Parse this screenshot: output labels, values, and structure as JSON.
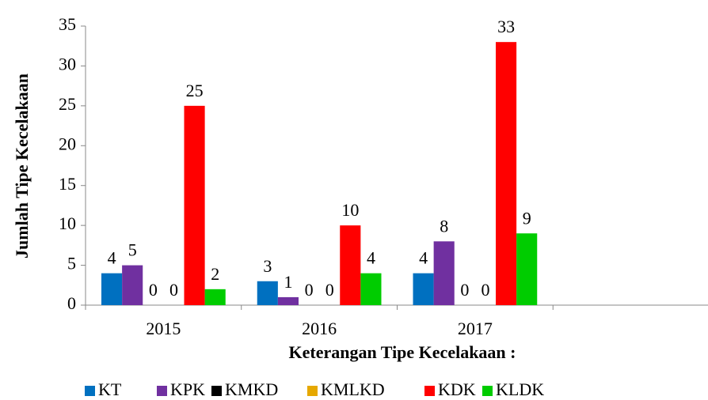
{
  "chart_data": {
    "type": "bar",
    "xlabel": "Keterangan Tipe Kecelakaan :",
    "ylabel": "Jumlah Tipe Kecelakaan",
    "categories": [
      "2015",
      "2016",
      "2017",
      null
    ],
    "series": [
      {
        "name": "KT",
        "color": "#0070c0",
        "values": [
          4,
          3,
          4,
          null
        ]
      },
      {
        "name": "KPK",
        "color": "#7030a0",
        "values": [
          5,
          1,
          8,
          null
        ]
      },
      {
        "name": "KMKD",
        "color": "#000000",
        "values": [
          0,
          0,
          0,
          null
        ]
      },
      {
        "name": "KMLKD",
        "color": "#e6a800",
        "values": [
          0,
          0,
          0,
          null
        ]
      },
      {
        "name": "KDK",
        "color": "#ff0000",
        "values": [
          25,
          10,
          33,
          null
        ]
      },
      {
        "name": "KLDK",
        "color": "#00cc00",
        "values": [
          2,
          4,
          9,
          null
        ]
      }
    ],
    "ylim": [
      0,
      35
    ],
    "yticks": [
      0,
      5,
      10,
      15,
      20,
      25,
      30,
      35
    ],
    "legend": "bottom",
    "data_labels": true
  }
}
